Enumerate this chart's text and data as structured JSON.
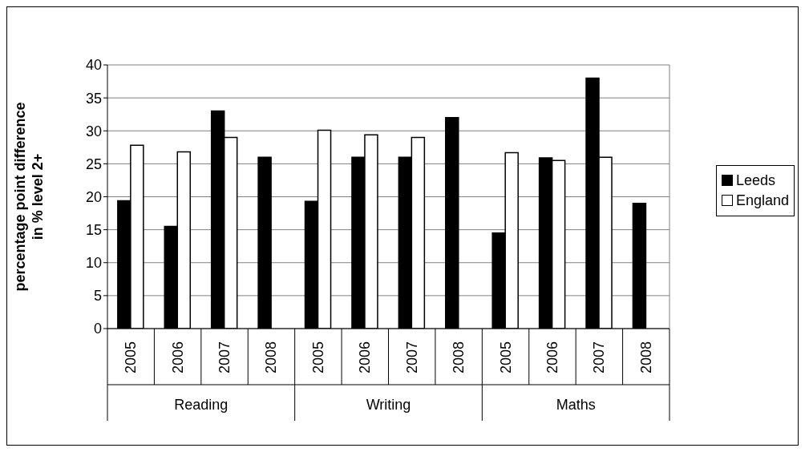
{
  "chart_data": {
    "type": "bar",
    "ylabel": "percentage point difference\nin % level 2+",
    "categories": [
      "2005",
      "2006",
      "2007",
      "2008",
      "2005",
      "2006",
      "2007",
      "2008",
      "2005",
      "2006",
      "2007",
      "2008"
    ],
    "annotations": [
      "Reading",
      "Writing",
      "Maths"
    ],
    "series": [
      {
        "name": "Leeds",
        "color": "#000000",
        "values": [
          19.4,
          15.5,
          33,
          26,
          19.3,
          26,
          26,
          32,
          14.5,
          25.9,
          38,
          19
        ]
      },
      {
        "name": "England",
        "color": "#ffffff",
        "values": [
          27.8,
          26.8,
          29,
          null,
          30.1,
          29.4,
          29,
          null,
          26.7,
          25.5,
          26,
          null
        ]
      }
    ],
    "ylim": [
      0,
      40
    ],
    "yticks": [
      0,
      5,
      10,
      15,
      20,
      25,
      30,
      35,
      40
    ],
    "grid": "y",
    "legend": "right"
  }
}
